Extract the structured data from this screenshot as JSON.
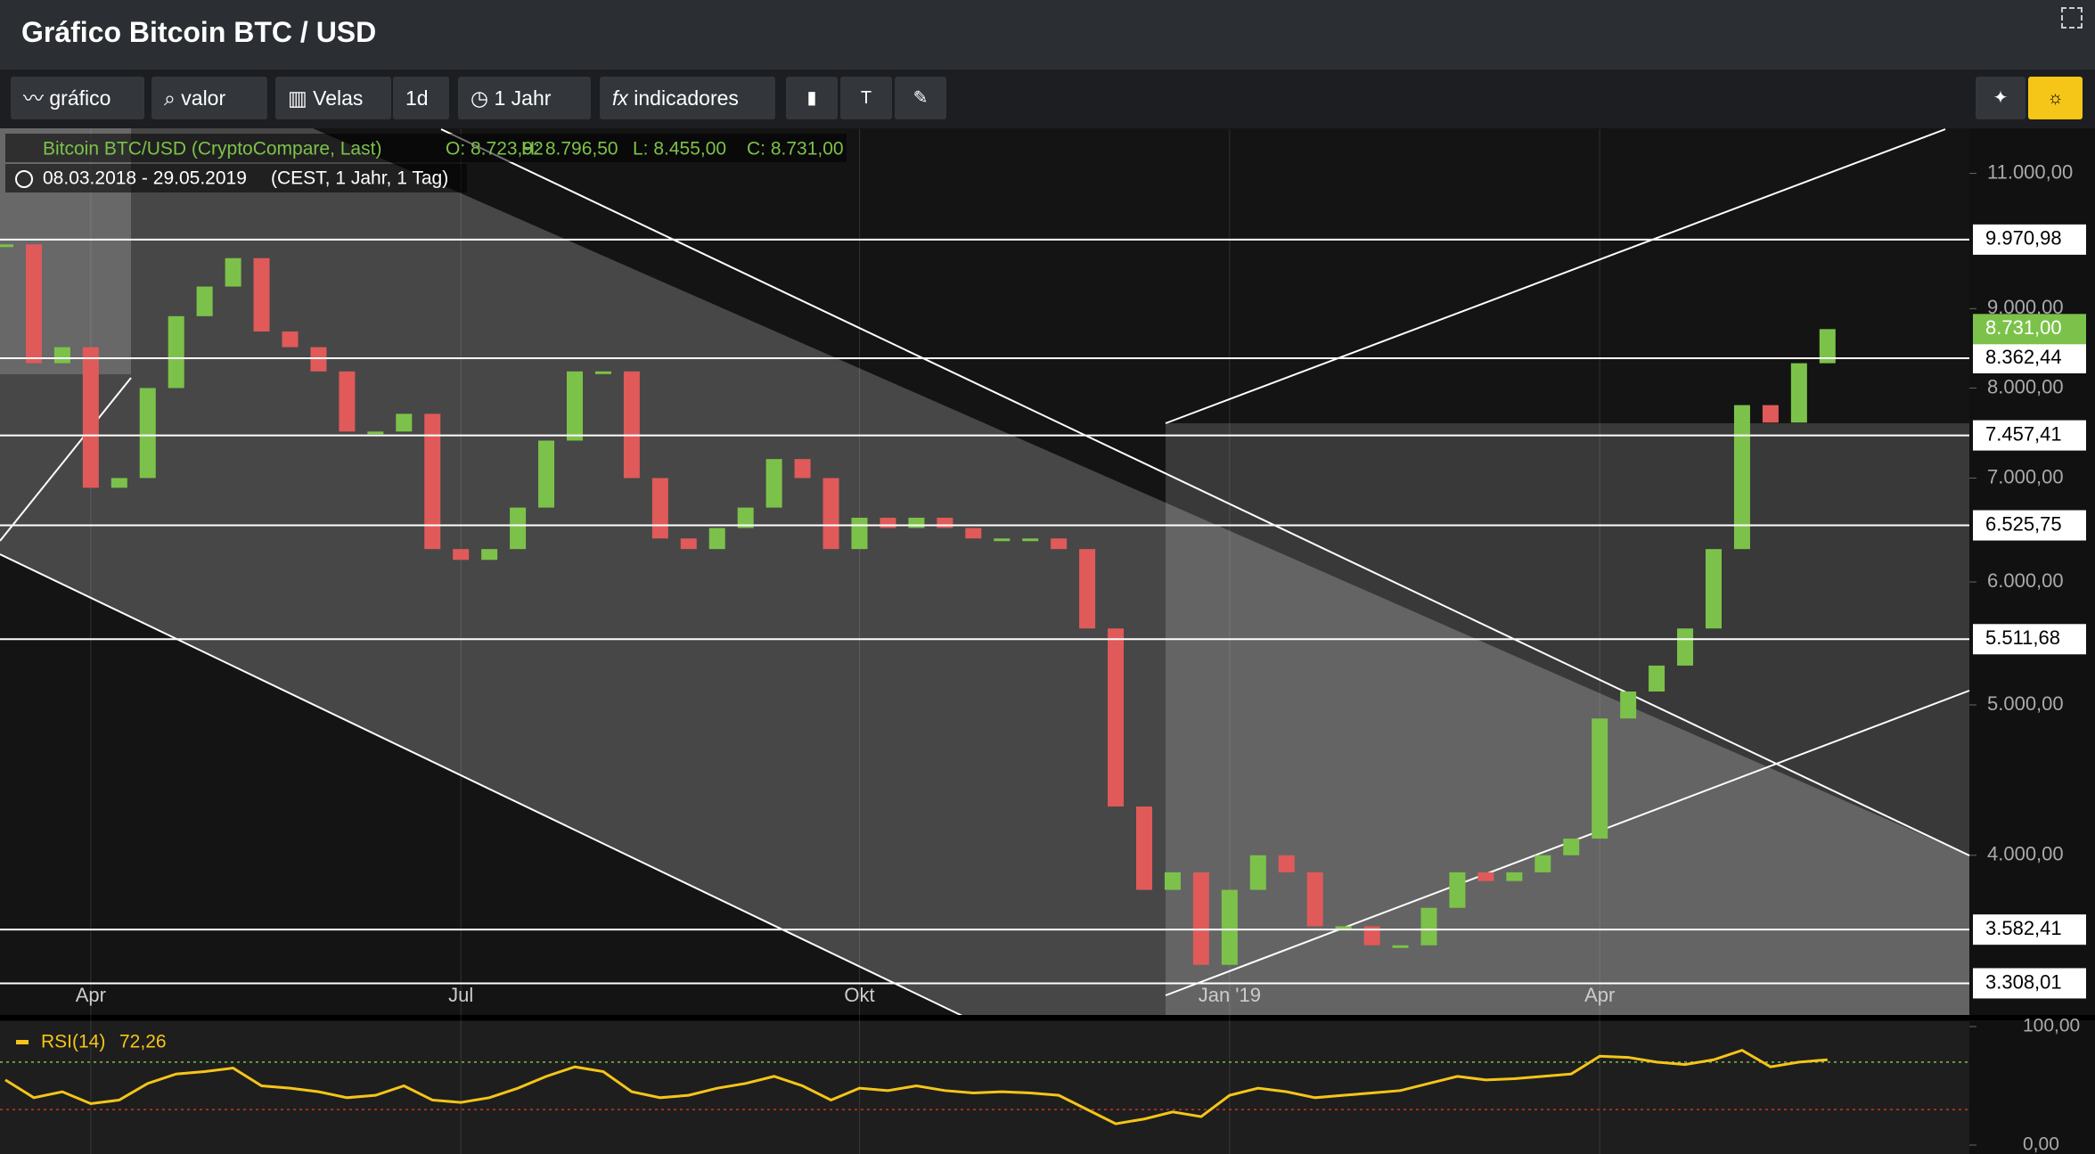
{
  "header": {
    "title": "Gráfico Bitcoin BTC / USD"
  },
  "toolbar": {
    "buttons": [
      "gráfico",
      "valor",
      "Velas",
      "1d",
      "1 Jahr",
      "indicadores"
    ]
  },
  "info": {
    "instrument": "Bitcoin BTC/USD (CryptoCompare, Last)",
    "open": "O: 8.723,92",
    "high": "H: 8.796,50",
    "low": "L: 8.455,00",
    "close": "C: 8.731,00",
    "range": "08.03.2018 - 29.05.2019",
    "settings": "(CEST, 1 Jahr, 1 Tag)"
  },
  "chart_data": {
    "type": "candlestick",
    "log_scale": true,
    "categories": [
      null,
      null,
      null,
      "Apr",
      null,
      null,
      null,
      null,
      null,
      null,
      null,
      null,
      null,
      null,
      null,
      null,
      "Jul",
      null,
      null,
      null,
      null,
      null,
      null,
      null,
      null,
      null,
      null,
      null,
      null,
      null,
      "Okt",
      null,
      null,
      null,
      null,
      null,
      null,
      null,
      null,
      null,
      null,
      null,
      null,
      "Jan '19",
      null,
      null,
      null,
      null,
      null,
      null,
      null,
      null,
      null,
      null,
      null,
      null,
      "Apr",
      null,
      null,
      null,
      null,
      null,
      null,
      null,
      null
    ],
    "values": [
      9900,
      8300,
      8500,
      6900,
      7000,
      8000,
      8900,
      9300,
      9700,
      8700,
      8500,
      8200,
      7500,
      7500,
      7700,
      6300,
      6200,
      6300,
      6700,
      7400,
      8200,
      8200,
      7000,
      6400,
      6300,
      6500,
      6700,
      7200,
      7000,
      6300,
      6600,
      6500,
      6600,
      6500,
      6400,
      6400,
      6400,
      6300,
      5600,
      4300,
      3800,
      3900,
      3400,
      3800,
      4000,
      3900,
      3600,
      3600,
      3500,
      3500,
      3700,
      3900,
      3850,
      3900,
      4000,
      4100,
      4900,
      5100,
      5300,
      5600,
      6300,
      7800,
      7600,
      8300,
      8731
    ],
    "up_color": "#7cc24a",
    "down_color": "#e05a5a",
    "ylim": [
      3152,
      11745
    ],
    "yticks": [
      {
        "value": 4000,
        "label": "4.000,00"
      },
      {
        "value": 5000,
        "label": "5.000,00"
      },
      {
        "value": 6000,
        "label": "6.000,00"
      },
      {
        "value": 7000,
        "label": "7.000,00"
      },
      {
        "value": 8000,
        "label": "8.000,00"
      },
      {
        "value": 9000,
        "label": "9.000,00"
      },
      {
        "value": 11000,
        "label": "11.000,00"
      }
    ],
    "levels": [
      {
        "value": 9970.98,
        "label": "9.970,98"
      },
      {
        "value": 8362.44,
        "label": "8.362,44"
      },
      {
        "value": 7457.41,
        "label": "7.457,41"
      },
      {
        "value": 6525.75,
        "label": "6.525,75"
      },
      {
        "value": 5511.68,
        "label": "5.511,68"
      },
      {
        "value": 3582.41,
        "label": "3.582,41"
      },
      {
        "value": 3308.01,
        "label": "3.308,01"
      }
    ],
    "last": {
      "value": 8731,
      "label": "8.731,00",
      "color": "#7cc24a"
    },
    "rsi": {
      "name": "RSI(14)",
      "value": 72.26,
      "value_label": "72,26",
      "color": "#f5c518",
      "ylim": [
        0,
        100
      ],
      "yticks": [
        {
          "value": 0,
          "label": "0,00"
        },
        {
          "value": 100,
          "label": "100,00"
        }
      ],
      "levels": [
        70,
        30
      ],
      "values": [
        55,
        40,
        45,
        35,
        38,
        52,
        60,
        62,
        65,
        50,
        48,
        45,
        40,
        42,
        50,
        38,
        36,
        40,
        48,
        58,
        66,
        62,
        45,
        40,
        42,
        48,
        52,
        58,
        50,
        38,
        48,
        46,
        50,
        46,
        44,
        45,
        44,
        42,
        30,
        18,
        22,
        28,
        24,
        42,
        48,
        45,
        40,
        42,
        44,
        46,
        52,
        58,
        55,
        56,
        58,
        60,
        75,
        74,
        70,
        68,
        72,
        80,
        66,
        70,
        72
      ]
    }
  }
}
